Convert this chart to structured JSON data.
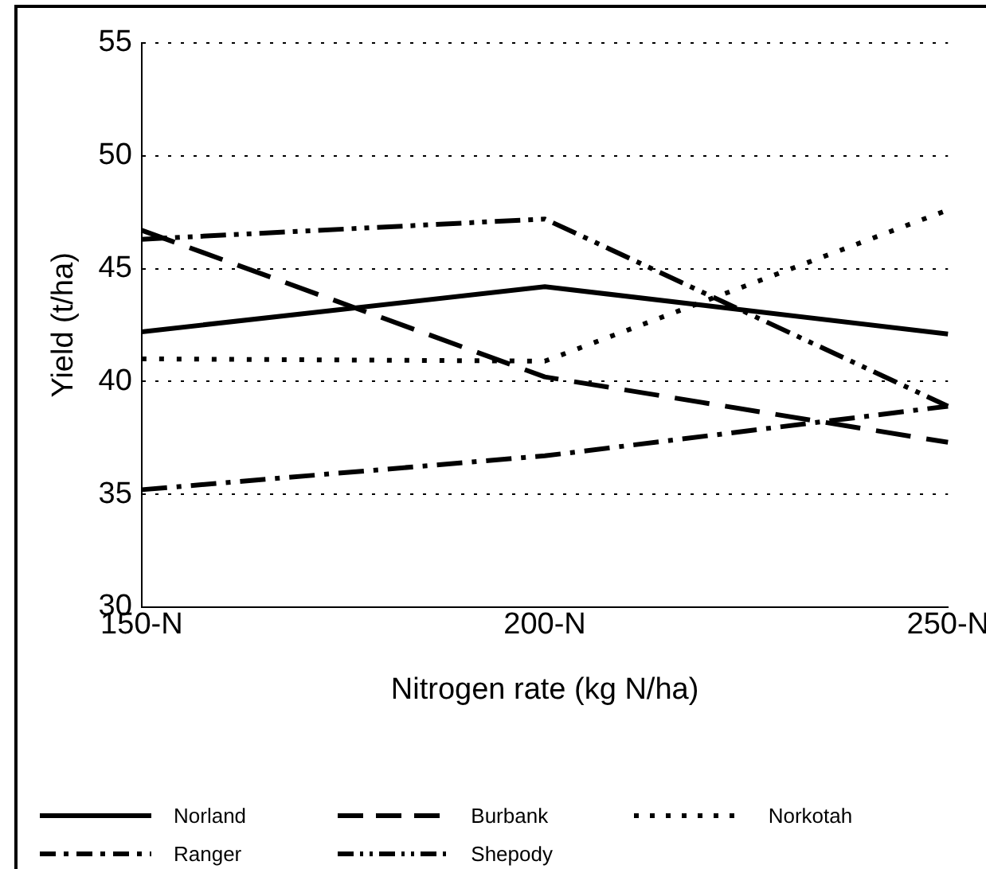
{
  "chart_data": {
    "type": "line",
    "xlabel": "Nitrogen rate (kg N/ha)",
    "ylabel": "Yield (t/ha)",
    "categories": [
      "150-N",
      "200-N",
      "250-N"
    ],
    "series": [
      {
        "name": "Norland",
        "color": "#000000",
        "line_style": "solid",
        "values": [
          42.2,
          44.2,
          42.1
        ]
      },
      {
        "name": "Burbank",
        "color": "#000000",
        "line_style": "dashed",
        "values": [
          46.7,
          40.2,
          37.3
        ]
      },
      {
        "name": "Norkotah",
        "color": "#000000",
        "line_style": "dotted",
        "values": [
          41.0,
          40.9,
          47.6
        ]
      },
      {
        "name": "Ranger",
        "color": "#000000",
        "line_style": "dashdot",
        "values": [
          35.2,
          36.7,
          38.9
        ]
      },
      {
        "name": "Shepody",
        "color": "#000000",
        "line_style": "dashdotdot",
        "values": [
          46.3,
          47.2,
          38.9
        ]
      }
    ],
    "ylim": [
      30,
      55
    ],
    "yticks": [
      30,
      35,
      40,
      45,
      50,
      55
    ],
    "grid": "y",
    "legend": "bottom",
    "marker": "none"
  }
}
